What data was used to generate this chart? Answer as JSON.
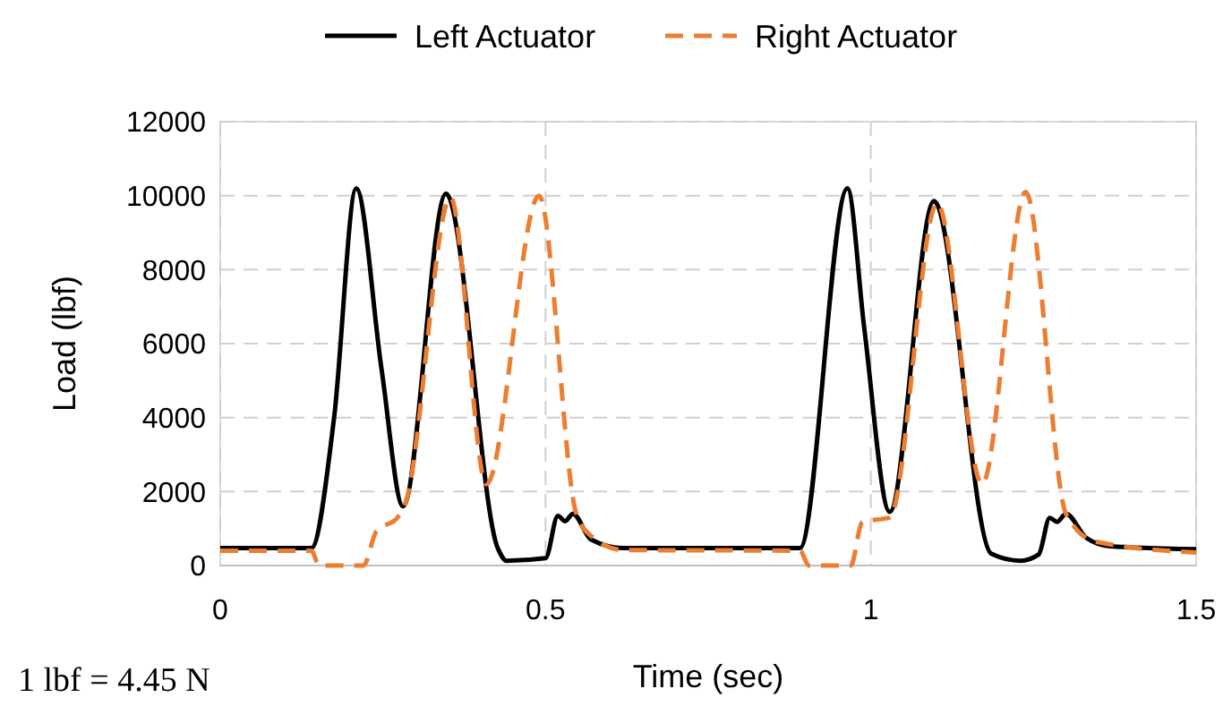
{
  "chart_data": {
    "type": "line",
    "xlabel": "Time (sec)",
    "ylabel": "Load (lbf)",
    "annotations": [
      "1 lbf = 4.45 N"
    ],
    "xlim": [
      0,
      1.5
    ],
    "xticks": [
      0,
      0.5,
      1,
      1.5
    ],
    "ylim": [
      0,
      12000
    ],
    "yticks": [
      0,
      2000,
      4000,
      6000,
      8000,
      10000,
      12000
    ],
    "grid": true,
    "legend": "top",
    "series": [
      {
        "name": "Left Actuator",
        "color": "#000000",
        "line_style": "solid",
        "x": [
          0,
          0.14,
          0.175,
          0.209,
          0.248,
          0.281,
          0.347,
          0.427,
          0.44,
          0.5,
          0.519,
          0.53,
          0.542,
          0.57,
          0.62,
          0.891,
          0.964,
          0.99,
          1.029,
          1.097,
          1.185,
          1.23,
          1.258,
          1.275,
          1.286,
          1.3,
          1.331,
          1.368,
          1.5
        ],
        "values": [
          470,
          470,
          4000,
          10200,
          5300,
          1600,
          10050,
          450,
          130,
          200,
          1340,
          1200,
          1400,
          700,
          470,
          470,
          10200,
          6400,
          1450,
          9850,
          320,
          130,
          300,
          1290,
          1180,
          1400,
          750,
          520,
          440
        ]
      },
      {
        "name": "Right Actuator",
        "color": "#ed7d31",
        "line_style": "dashed",
        "x": [
          0,
          0.14,
          0.152,
          0.22,
          0.24,
          0.272,
          0.285,
          0.354,
          0.409,
          0.49,
          0.547,
          0.57,
          0.62,
          0.891,
          0.905,
          0.969,
          0.987,
          1.029,
          1.102,
          1.171,
          1.238,
          1.3,
          1.345,
          1.5
        ],
        "values": [
          400,
          400,
          0,
          0,
          930,
          1290,
          1720,
          9950,
          2200,
          10000,
          1420,
          800,
          420,
          400,
          0,
          0,
          1180,
          1300,
          9800,
          2200,
          10100,
          1400,
          650,
          350
        ]
      }
    ]
  }
}
